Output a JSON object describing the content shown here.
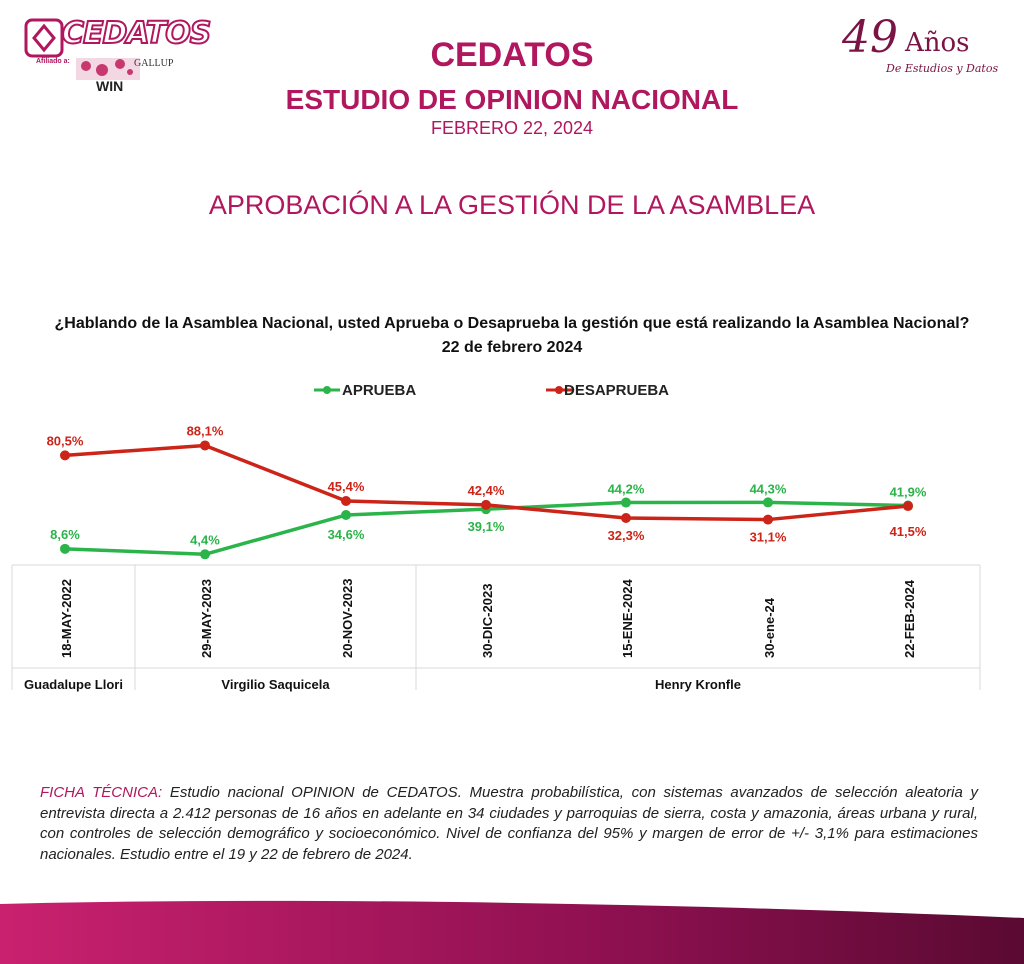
{
  "header": {
    "brand": "CEDATOS",
    "affiliation": "Afiliado a:",
    "partner_1": "GALLUP",
    "partner_2": "WIN",
    "anniversary_number": "49",
    "anniversary_word": "Años",
    "anniversary_tagline": "De Estudios y Datos",
    "title": "CEDATOS",
    "subtitle": "ESTUDIO DE OPINION NACIONAL",
    "date": "FEBRERO 22, 2024",
    "section_title": "APROBACIÓN A LA GESTIÓN DE LA ASAMBLEA"
  },
  "colors": {
    "brand": "#b0175f",
    "aprueba": "#2bb44a",
    "desaprueba": "#cc2418"
  },
  "chart_data": {
    "type": "line",
    "title": "¿Hablando de la Asamblea Nacional, usted Aprueba o Desaprueba la gestión que está realizando la Asamblea Nacional?",
    "subtitle": "22 de febrero 2024",
    "categories": [
      "18-MAY-2022",
      "29-MAY-2023",
      "20-NOV-2023",
      "30-DIC-2023",
      "15-ENE-2024",
      "30-ene-24",
      "22-FEB-2024"
    ],
    "series": [
      {
        "name": "APRUEBA",
        "color": "#2bb44a",
        "values": [
          8.6,
          4.4,
          34.6,
          39.1,
          44.2,
          44.3,
          41.9
        ],
        "labels": [
          "8,6%",
          "4,4%",
          "34,6%",
          "39,1%",
          "44,2%",
          "44,3%",
          "41,9%"
        ]
      },
      {
        "name": "DESAPRUEBA",
        "color": "#cc2418",
        "values": [
          80.5,
          88.1,
          45.4,
          42.4,
          32.3,
          31.1,
          41.5
        ],
        "labels": [
          "80,5%",
          "88,1%",
          "45,4%",
          "42,4%",
          "32,3%",
          "31,1%",
          "41,5%"
        ]
      }
    ],
    "groups": [
      {
        "label": "Guadalupe Llori",
        "from": 0,
        "to": 0
      },
      {
        "label": "Virgilio Saquicela",
        "from": 1,
        "to": 2
      },
      {
        "label": "Henry Kronfle",
        "from": 3,
        "to": 6
      }
    ],
    "ylim": [
      0,
      100
    ],
    "grid": false,
    "legend": "top-center"
  },
  "ficha": {
    "label": "FICHA TÉCNICA:",
    "text": "Estudio nacional OPINION de CEDATOS. Muestra probabilística, con sistemas avanzados de selección aleatoria y entrevista directa a 2.412  personas de 16 años en adelante en 34 ciudades y parroquias de sierra, costa y amazonia, áreas urbana y rural, con controles de selección demográfico y socioeconómico. Nivel de confianza del 95% y margen de error de +/- 3,1% para estimaciones nacionales. Estudio entre el 19 y 22 de febrero de 2024."
  }
}
